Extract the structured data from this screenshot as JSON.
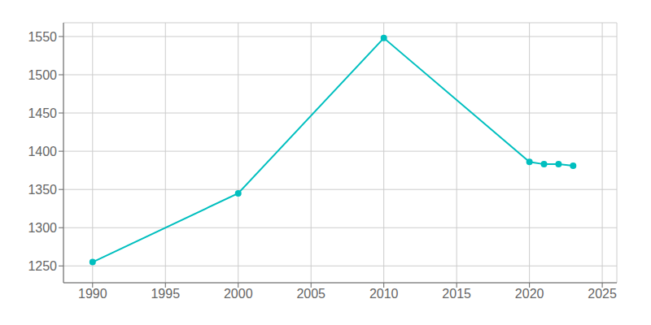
{
  "chart_data": {
    "type": "line",
    "x": [
      1990,
      2000,
      2010,
      2020,
      2021,
      2022,
      2023
    ],
    "values": [
      1255,
      1345,
      1548,
      1386,
      1383,
      1383,
      1381
    ],
    "color": "#00BFBF",
    "marker": "circle",
    "xlim": [
      1988,
      2026
    ],
    "ylim": [
      1228,
      1568
    ],
    "xticks": [
      1990,
      1995,
      2000,
      2005,
      2010,
      2015,
      2020,
      2025
    ],
    "yticks": [
      1250,
      1300,
      1350,
      1400,
      1450,
      1500,
      1550
    ],
    "grid": true
  }
}
